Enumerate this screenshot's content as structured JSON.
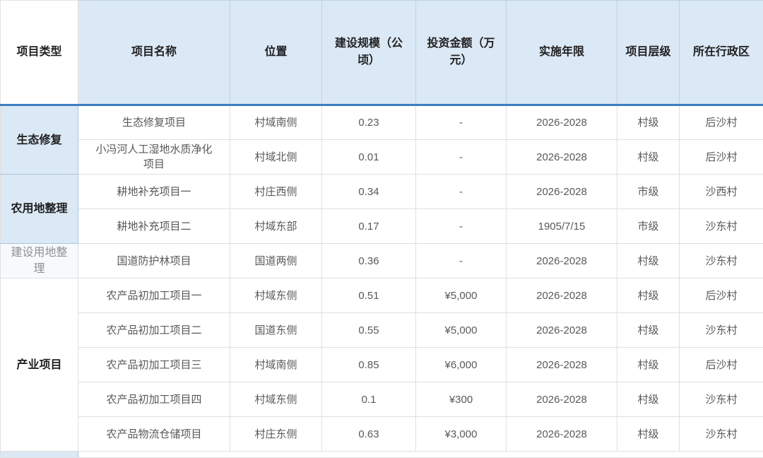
{
  "colors": {
    "header_bg": "#dbe8f5",
    "group_bg": "#dbe8f5",
    "muted_group_bg": "#f6fafd",
    "header_line": "#3d7ebf",
    "header_border": "#bdd2e6",
    "body_border": "#e0e0e0",
    "blue_border": "#a9c6e0",
    "header_text": "#1f1f1f",
    "group_text": "#1f1f1f",
    "muted_group_text": "#8f8f8f",
    "body_text": "#595959"
  },
  "table": {
    "columns": [
      {
        "label": "项目类型"
      },
      {
        "label": "项目名称"
      },
      {
        "label": "位置"
      },
      {
        "label": "建设规模（公顷）"
      },
      {
        "label": "投资金额（万元）"
      },
      {
        "label": "实施年限"
      },
      {
        "label": "项目层级"
      },
      {
        "label": "所在行政区"
      }
    ],
    "groups": [
      {
        "type_label": "生态修复",
        "style": "blue",
        "rows": [
          {
            "name": "生态修复项目",
            "location": "村域南侧",
            "scale": "0.23",
            "investment": "-",
            "years": "2026-2028",
            "level": "村级",
            "district": "后沙村"
          },
          {
            "name": "小冯河人工湿地水质净化项目",
            "location": "村域北侧",
            "scale": "0.01",
            "investment": "-",
            "years": "2026-2028",
            "level": "村级",
            "district": "后沙村"
          }
        ]
      },
      {
        "type_label": "农用地整理",
        "style": "blue",
        "rows": [
          {
            "name": "耕地补充项目一",
            "location": "村庄西侧",
            "scale": "0.34",
            "investment": "-",
            "years": "2026-2028",
            "level": "市级",
            "district": "沙西村"
          },
          {
            "name": "耕地补充项目二",
            "location": "村域东部",
            "scale": "0.17",
            "investment": "-",
            "years": "1905/7/15",
            "level": "市级",
            "district": "沙东村"
          }
        ]
      },
      {
        "type_label": "建设用地整理",
        "style": "muted",
        "rows": [
          {
            "name": "国道防护林项目",
            "location": "国道两侧",
            "scale": "0.36",
            "investment": "-",
            "years": "2026-2028",
            "level": "村级",
            "district": "沙东村"
          }
        ]
      },
      {
        "type_label": "产业项目",
        "style": "plain",
        "rows": [
          {
            "name": "农产品初加工项目一",
            "location": "村域东侧",
            "scale": "0.51",
            "investment": "¥5,000",
            "years": "2026-2028",
            "level": "村级",
            "district": "后沙村"
          },
          {
            "name": "农产品初加工项目二",
            "location": "国道东侧",
            "scale": "0.55",
            "investment": "¥5,000",
            "years": "2026-2028",
            "level": "村级",
            "district": "沙东村"
          },
          {
            "name": "农产品初加工项目三",
            "location": "村域南侧",
            "scale": "0.85",
            "investment": "¥6,000",
            "years": "2026-2028",
            "level": "村级",
            "district": "后沙村"
          },
          {
            "name": "农产品初加工项目四",
            "location": "村域东侧",
            "scale": "0.1",
            "investment": "¥300",
            "years": "2026-2028",
            "level": "村级",
            "district": "沙东村"
          },
          {
            "name": "农产品物流仓储项目",
            "location": "村庄东侧",
            "scale": "0.63",
            "investment": "¥3,000",
            "years": "2026-2028",
            "level": "村级",
            "district": "沙东村"
          }
        ]
      }
    ]
  }
}
